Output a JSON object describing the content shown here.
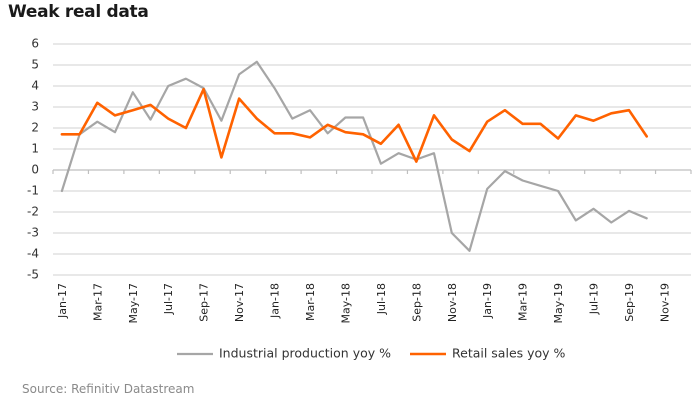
{
  "chart_data": {
    "type": "line",
    "title": "Weak real data",
    "source": "Source: Refinitiv Datastream",
    "xlabel": "",
    "ylabel": "",
    "ylim": [
      -5,
      6
    ],
    "yticks": [
      "6",
      "5",
      "4",
      "3",
      "2",
      "1",
      "0",
      "-1",
      "-2",
      "-3",
      "-4",
      "-5"
    ],
    "grid": true,
    "legend_position": "bottom",
    "x": [
      "Jan-17",
      "Feb-17",
      "Mar-17",
      "Apr-17",
      "May-17",
      "Jun-17",
      "Jul-17",
      "Aug-17",
      "Sep-17",
      "Oct-17",
      "Nov-17",
      "Dec-17",
      "Jan-18",
      "Feb-18",
      "Mar-18",
      "Apr-18",
      "May-18",
      "Jun-18",
      "Jul-18",
      "Aug-18",
      "Sep-18",
      "Oct-18",
      "Nov-18",
      "Dec-18",
      "Jan-19",
      "Feb-19",
      "Mar-19",
      "Apr-19",
      "May-19",
      "Jun-19",
      "Jul-19",
      "Aug-19",
      "Sep-19",
      "Oct-19",
      "Nov-19",
      "Dec-19"
    ],
    "xtick_labels": [
      "Jan-17",
      "Mar-17",
      "May-17",
      "Jul-17",
      "Sep-17",
      "Nov-17",
      "Jan-18",
      "Mar-18",
      "May-18",
      "Jul-18",
      "Sep-18",
      "Nov-18",
      "Jan-19",
      "Mar-19",
      "May-19",
      "Jul-19",
      "Sep-19",
      "Nov-19"
    ],
    "series": [
      {
        "name": "Industrial production yoy %",
        "color": "#a6a6a6",
        "values": [
          -1.0,
          1.7,
          2.3,
          1.8,
          3.7,
          2.4,
          4.0,
          4.35,
          3.9,
          2.35,
          4.55,
          5.15,
          3.9,
          2.45,
          2.85,
          1.75,
          2.5,
          2.5,
          0.3,
          0.8,
          0.5,
          0.8,
          -3.0,
          -3.85,
          -0.9,
          -0.05,
          -0.5,
          -0.75,
          -1.0,
          -2.4,
          -1.85,
          -2.5,
          -1.95,
          -2.3,
          null,
          null
        ]
      },
      {
        "name": "Retail sales yoy %",
        "color": "#ff6200",
        "values": [
          1.7,
          1.7,
          3.2,
          2.6,
          2.85,
          3.1,
          2.45,
          2.0,
          3.85,
          0.6,
          3.4,
          2.45,
          1.75,
          1.75,
          1.55,
          2.15,
          1.8,
          1.7,
          1.25,
          2.15,
          0.4,
          2.6,
          1.45,
          0.9,
          2.3,
          2.85,
          2.2,
          2.2,
          1.5,
          2.6,
          2.35,
          2.7,
          2.85,
          1.6,
          null,
          null
        ]
      }
    ]
  }
}
